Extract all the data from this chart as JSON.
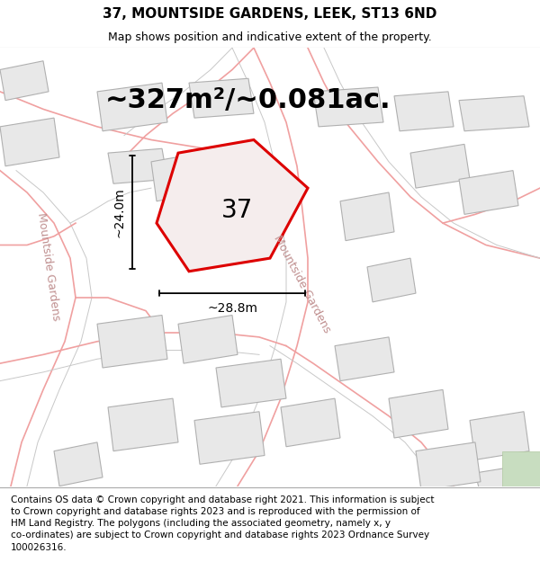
{
  "title": "37, MOUNTSIDE GARDENS, LEEK, ST13 6ND",
  "subtitle": "Map shows position and indicative extent of the property.",
  "footer": "Contains OS data © Crown copyright and database right 2021. This information is subject\nto Crown copyright and database rights 2023 and is reproduced with the permission of\nHM Land Registry. The polygons (including the associated geometry, namely x, y\nco-ordinates) are subject to Crown copyright and database rights 2023 Ordnance Survey\n100026316.",
  "area_label": "~327m²/~0.081ac.",
  "property_number": "37",
  "width_label": "~28.8m",
  "height_label": "~24.0m",
  "bg_color": "#ffffff",
  "map_bg": "#ffffff",
  "road_color": "#f0a0a0",
  "road_lw": 1.2,
  "parcel_road_color": "#c8c8c8",
  "parcel_road_lw": 0.7,
  "building_color": "#e8e8e8",
  "building_edge": "#b0b0b0",
  "building_lw": 0.8,
  "plot_color": "#f5eded",
  "plot_edge": "#dd0000",
  "plot_lw": 2.2,
  "street_label_color": "#c09090",
  "street_fontsize": 9,
  "title_fontsize": 11,
  "subtitle_fontsize": 9,
  "footer_fontsize": 7.5,
  "area_fontsize": 22,
  "property_fontsize": 20,
  "dim_fontsize": 10
}
